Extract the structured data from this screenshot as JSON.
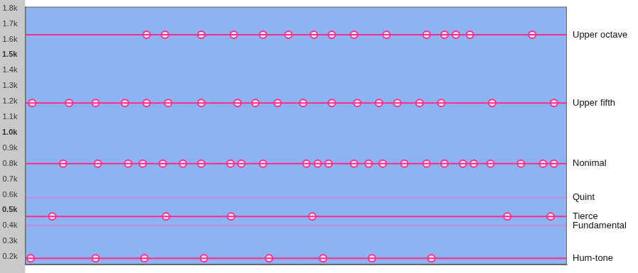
{
  "chart_data": {
    "type": "spectrogram",
    "color": "#8db3f0",
    "grid": false,
    "tick_labels": "y",
    "xlim": [
      0,
      100
    ],
    "ylim": [
      0.15,
      1.81
    ],
    "yticks": [
      {
        "value": 0.2,
        "label": "0.2k"
      },
      {
        "value": 0.3,
        "label": "0.3k"
      },
      {
        "value": 0.4,
        "label": "0.4k"
      },
      {
        "value": 0.5,
        "label": "0.5k"
      },
      {
        "value": 0.6,
        "label": "0.6k"
      },
      {
        "value": 0.7,
        "label": "0.7k"
      },
      {
        "value": 0.8,
        "label": "0.8k"
      },
      {
        "value": 0.9,
        "label": "0.9k"
      },
      {
        "value": 1.0,
        "label": "1.0k"
      },
      {
        "value": 1.1,
        "label": "1.1k"
      },
      {
        "value": 1.2,
        "label": "1.2k"
      },
      {
        "value": 1.3,
        "label": "1.3k"
      },
      {
        "value": 1.4,
        "label": "1.4k"
      },
      {
        "value": 1.5,
        "label": "1.5k"
      },
      {
        "value": 1.6,
        "label": "1.6k"
      },
      {
        "value": 1.7,
        "label": "1.7k"
      },
      {
        "value": 1.8,
        "label": "1.8k"
      }
    ],
    "series": [
      {
        "name": "Upper octave",
        "frequency": 1.63,
        "color": "#ff2d8c",
        "x": [
          22.4,
          25.8,
          32.5,
          38.5,
          43.9,
          48.6,
          53.3,
          56.6,
          60.7,
          66.7,
          74.1,
          77.4,
          79.5,
          82.1,
          93.6
        ]
      },
      {
        "name": "Upper fifth",
        "frequency": 1.19,
        "color": "#ff2d8c",
        "x": [
          1.3,
          8.1,
          13,
          18.4,
          22.4,
          26.4,
          32.5,
          39.2,
          42.5,
          46.6,
          51.3,
          56.6,
          61.3,
          65.3,
          68.7,
          72.8,
          76.8,
          86.2,
          97.6
        ]
      },
      {
        "name": "Nonimal",
        "frequency": 0.8,
        "color": "#ff2d8c",
        "x": [
          7,
          13.4,
          19,
          21.7,
          25.4,
          29.1,
          32.5,
          37.9,
          39.9,
          43.9,
          51.9,
          54,
          56,
          60.7,
          63.4,
          66,
          70,
          74.1,
          77.4,
          80.8,
          82.8,
          85.9,
          91.5,
          95.6,
          97.6
        ]
      },
      {
        "name": "Quint",
        "frequency": 0.58,
        "color": "#c98ad6",
        "x": []
      },
      {
        "name": "Tierce",
        "frequency": 0.46,
        "color": "#ff2d8c",
        "x": [
          5,
          26,
          38,
          53,
          89,
          97
        ]
      },
      {
        "name": "Fundamental",
        "frequency": 0.4,
        "color": "#c98ad6",
        "x": []
      },
      {
        "name": "Hum-tone",
        "frequency": 0.19,
        "color": "#ff2d8c",
        "x": [
          1,
          13,
          22,
          33,
          45,
          55,
          64,
          75
        ]
      }
    ]
  }
}
